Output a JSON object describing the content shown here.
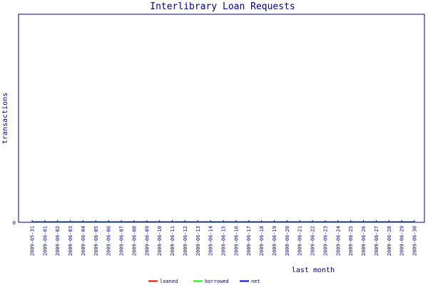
{
  "chart_data": {
    "type": "line",
    "title": "Interlibrary Loan Requests",
    "xlabel": "last month",
    "ylabel": "transactions",
    "x": [
      "2009-05-31",
      "2009-06-01",
      "2009-06-02",
      "2009-06-03",
      "2009-06-04",
      "2009-06-05",
      "2009-06-06",
      "2009-06-07",
      "2009-06-08",
      "2009-06-09",
      "2009-06-10",
      "2009-06-11",
      "2009-06-12",
      "2009-06-13",
      "2009-06-14",
      "2009-06-15",
      "2009-06-16",
      "2009-06-17",
      "2009-06-18",
      "2009-06-19",
      "2009-06-20",
      "2009-06-21",
      "2009-06-22",
      "2009-06-23",
      "2009-06-24",
      "2009-06-25",
      "2009-06-26",
      "2009-06-27",
      "2009-06-28",
      "2009-06-29",
      "2009-06-30"
    ],
    "y_ticks": [
      "0"
    ],
    "ylim": [
      0,
      1
    ],
    "series": [
      {
        "name": "loaned",
        "color": "#ff0000",
        "values": [
          0,
          0,
          0,
          0,
          0,
          0,
          0,
          0,
          0,
          0,
          0,
          0,
          0,
          0,
          0,
          0,
          0,
          0,
          0,
          0,
          0,
          0,
          0,
          0,
          0,
          0,
          0,
          0,
          0,
          0,
          0
        ]
      },
      {
        "name": "borrowed",
        "color": "#00ff00",
        "values": [
          0,
          0,
          0,
          0,
          0,
          0,
          0,
          0,
          0,
          0,
          0,
          0,
          0,
          0,
          0,
          0,
          0,
          0,
          0,
          0,
          0,
          0,
          0,
          0,
          0,
          0,
          0,
          0,
          0,
          0,
          0
        ]
      },
      {
        "name": "net",
        "color": "#0000ff",
        "values": [
          0,
          0,
          0,
          0,
          0,
          0,
          0,
          0,
          0,
          0,
          0,
          0,
          0,
          0,
          0,
          0,
          0,
          0,
          0,
          0,
          0,
          0,
          0,
          0,
          0,
          0,
          0,
          0,
          0,
          0,
          0
        ]
      }
    ],
    "legend_position": "bottom",
    "grid": false,
    "frame_color": "#000080"
  }
}
